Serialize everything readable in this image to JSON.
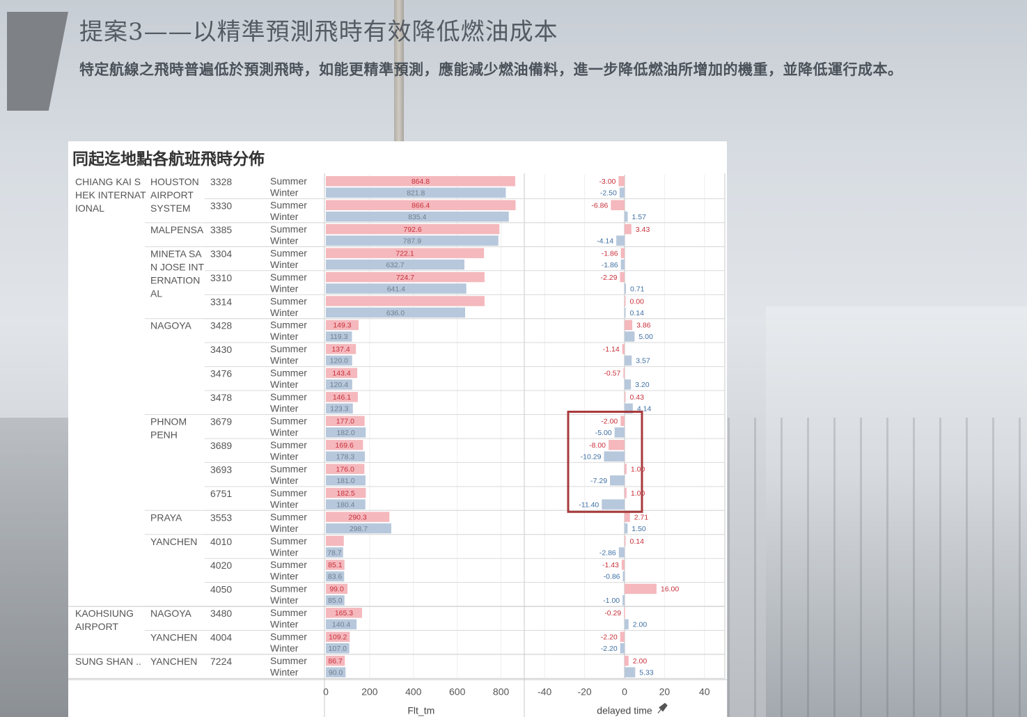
{
  "page": {
    "title": "提案3——以精準預測飛時有效降低燃油成本",
    "subtitle": "特定航線之飛時普遍低於預測飛時，如能更精準預測，應能減少燃油備料，進一步降低燃油所增加的機重，並降低運行成本。"
  },
  "chart_data": {
    "title": "同起迄地點各航班飛時分佈",
    "type": "bar",
    "orientation": "horizontal",
    "series": [
      {
        "name": "Summer",
        "color": "#f4b8bd",
        "label_color": "#c8303a"
      },
      {
        "name": "Winter",
        "color": "#b7c8dc",
        "label_color": "#3f6fa3"
      }
    ],
    "origins": [
      {
        "label": "CHIANG KAI S HEK INTERNAT IONAL",
        "label_lines": [
          "CHIANG KAI S",
          "HEK INTERNAT",
          "IONAL"
        ],
        "first_flight": 0,
        "count": 18
      },
      {
        "label": "KAOHSIUNG AIRPORT",
        "label_lines": [
          "KAOHSIUNG",
          "AIRPORT"
        ],
        "first_flight": 18,
        "count": 2
      },
      {
        "label": "SUNG SHAN ..",
        "label_lines": [
          "SUNG SHAN .."
        ],
        "first_flight": 20,
        "count": 1
      }
    ],
    "destinations": [
      {
        "label": "HOUSTON AIRPORT SYSTEM",
        "label_lines": [
          "HOUSTON",
          "AIRPORT",
          "SYSTEM"
        ],
        "first_flight": 0,
        "count": 2
      },
      {
        "label": "MALPENSA",
        "label_lines": [
          "MALPENSA"
        ],
        "first_flight": 2,
        "count": 1
      },
      {
        "label": "MINETA SA N JOSE INT ERNATION AL",
        "label_lines": [
          "MINETA SA",
          "N JOSE INT",
          "ERNATION",
          "AL"
        ],
        "first_flight": 3,
        "count": 3
      },
      {
        "label": "NAGOYA",
        "label_lines": [
          "NAGOYA"
        ],
        "first_flight": 6,
        "count": 4
      },
      {
        "label": "PHNOM PENH",
        "label_lines": [
          "PHNOM",
          "PENH"
        ],
        "first_flight": 10,
        "count": 4
      },
      {
        "label": "PRAYA",
        "label_lines": [
          "PRAYA"
        ],
        "first_flight": 14,
        "count": 1
      },
      {
        "label": "YANCHEN",
        "label_lines": [
          "YANCHEN"
        ],
        "first_flight": 15,
        "count": 3
      },
      {
        "label": "NAGOYA",
        "label_lines": [
          "NAGOYA"
        ],
        "first_flight": 18,
        "count": 1
      },
      {
        "label": "YANCHEN",
        "label_lines": [
          "YANCHEN"
        ],
        "first_flight": 19,
        "count": 1
      },
      {
        "label": "YANCHEN",
        "label_lines": [
          "YANCHEN"
        ],
        "first_flight": 20,
        "count": 1
      }
    ],
    "flights": [
      {
        "flight": "3328",
        "flt_tm": [
          864.8,
          821.8
        ],
        "flt_tm_labels": [
          "864.8",
          "821.8"
        ],
        "delay": [
          -3.0,
          -2.5
        ],
        "delay_labels": [
          "-3.00",
          "-2.50"
        ]
      },
      {
        "flight": "3330",
        "flt_tm": [
          866.4,
          835.4
        ],
        "flt_tm_labels": [
          "866.4",
          "835.4"
        ],
        "delay": [
          -6.86,
          1.57
        ],
        "delay_labels": [
          "-6.86",
          "1.57"
        ]
      },
      {
        "flight": "3385",
        "flt_tm": [
          792.6,
          787.9
        ],
        "flt_tm_labels": [
          "792.6",
          "787.9"
        ],
        "delay": [
          3.43,
          -4.14
        ],
        "delay_labels": [
          "3.43",
          "-4.14"
        ]
      },
      {
        "flight": "3304",
        "flt_tm": [
          722.1,
          632.7
        ],
        "flt_tm_labels": [
          "722.1",
          "632.7"
        ],
        "delay": [
          -1.86,
          -1.86
        ],
        "delay_labels": [
          "-1.86",
          "-1.86"
        ]
      },
      {
        "flight": "3310",
        "flt_tm": [
          724.7,
          641.4
        ],
        "flt_tm_labels": [
          "724.7",
          "641.4"
        ],
        "delay": [
          -2.29,
          0.71
        ],
        "delay_labels": [
          "-2.29",
          "0.71"
        ]
      },
      {
        "flight": "3314",
        "flt_tm": [
          724.7,
          636.0
        ],
        "flt_tm_labels": [
          "",
          "636.0"
        ],
        "delay": [
          0.0,
          0.14
        ],
        "delay_labels": [
          "0.00",
          "0.14"
        ]
      },
      {
        "flight": "3428",
        "flt_tm": [
          149.3,
          119.3
        ],
        "flt_tm_labels": [
          "149.3",
          "119.3"
        ],
        "delay": [
          3.86,
          5.0
        ],
        "delay_labels": [
          "3.86",
          "5.00"
        ]
      },
      {
        "flight": "3430",
        "flt_tm": [
          137.4,
          120.0
        ],
        "flt_tm_labels": [
          "137.4",
          "120.0"
        ],
        "delay": [
          -1.14,
          3.57
        ],
        "delay_labels": [
          "-1.14",
          "3.57"
        ]
      },
      {
        "flight": "3476",
        "flt_tm": [
          143.4,
          120.4
        ],
        "flt_tm_labels": [
          "143.4",
          "120.4"
        ],
        "delay": [
          -0.57,
          3.2
        ],
        "delay_labels": [
          "-0.57",
          "3.20"
        ]
      },
      {
        "flight": "3478",
        "flt_tm": [
          146.1,
          123.3
        ],
        "flt_tm_labels": [
          "146.1",
          "123.3"
        ],
        "delay": [
          0.43,
          4.14
        ],
        "delay_labels": [
          "0.43",
          "4.14"
        ]
      },
      {
        "flight": "3679",
        "flt_tm": [
          177.0,
          182.0
        ],
        "flt_tm_labels": [
          "177.0",
          "182.0"
        ],
        "delay": [
          -2.0,
          -5.0
        ],
        "delay_labels": [
          "-2.00",
          "-5.00"
        ]
      },
      {
        "flight": "3689",
        "flt_tm": [
          169.6,
          178.3
        ],
        "flt_tm_labels": [
          "169.6",
          "178.3"
        ],
        "delay": [
          -8.0,
          -10.29
        ],
        "delay_labels": [
          "-8.00",
          "-10.29"
        ]
      },
      {
        "flight": "3693",
        "flt_tm": [
          176.0,
          181.0
        ],
        "flt_tm_labels": [
          "176.0",
          "181.0"
        ],
        "delay": [
          1.0,
          -7.29
        ],
        "delay_labels": [
          "1.00",
          "-7.29"
        ]
      },
      {
        "flight": "6751",
        "flt_tm": [
          182.5,
          180.4
        ],
        "flt_tm_labels": [
          "182.5",
          "180.4"
        ],
        "delay": [
          1.0,
          -11.4
        ],
        "delay_labels": [
          "1.00",
          "-11.40"
        ]
      },
      {
        "flight": "3553",
        "flt_tm": [
          290.3,
          298.7
        ],
        "flt_tm_labels": [
          "290.3",
          "298.7"
        ],
        "delay": [
          2.71,
          1.5
        ],
        "delay_labels": [
          "2.71",
          "1.50"
        ]
      },
      {
        "flight": "4010",
        "flt_tm": [
          82.0,
          78.7
        ],
        "flt_tm_labels": [
          "",
          "78.7"
        ],
        "delay": [
          0.14,
          -2.86
        ],
        "delay_labels": [
          "0.14",
          "-2.86"
        ]
      },
      {
        "flight": "4020",
        "flt_tm": [
          85.1,
          83.6
        ],
        "flt_tm_labels": [
          "85.1",
          "83.6"
        ],
        "delay": [
          -1.43,
          -0.86
        ],
        "delay_labels": [
          "-1.43",
          "-0.86"
        ]
      },
      {
        "flight": "4050",
        "flt_tm": [
          99.0,
          85.0
        ],
        "flt_tm_labels": [
          "99.0",
          "85.0"
        ],
        "delay": [
          16.0,
          -1.0
        ],
        "delay_labels": [
          "16.00",
          "-1.00"
        ]
      },
      {
        "flight": "3480",
        "flt_tm": [
          165.3,
          140.4
        ],
        "flt_tm_labels": [
          "165.3",
          "140.4"
        ],
        "delay": [
          -0.29,
          2.0
        ],
        "delay_labels": [
          "-0.29",
          "2.00"
        ]
      },
      {
        "flight": "4004",
        "flt_tm": [
          109.2,
          107.0
        ],
        "flt_tm_labels": [
          "109.2",
          "107.0"
        ],
        "delay": [
          -2.2,
          -2.2
        ],
        "delay_labels": [
          "-2.20",
          "-2.20"
        ]
      },
      {
        "flight": "7224",
        "flt_tm": [
          86.7,
          90.0
        ],
        "flt_tm_labels": [
          "86.7",
          "90.0"
        ],
        "delay": [
          2.0,
          5.33
        ],
        "delay_labels": [
          "2.00",
          "5.33"
        ]
      }
    ],
    "axes": {
      "flt_tm": {
        "label": "Flt_tm",
        "range": [
          0,
          900
        ],
        "ticks": [
          0,
          200,
          400,
          600,
          800
        ]
      },
      "delay": {
        "label": "delayed time",
        "range": [
          -50,
          50
        ],
        "ticks": [
          -40,
          -20,
          0,
          20,
          40
        ]
      }
    },
    "highlight": {
      "from_flight": 10,
      "to_flight": 13,
      "color": "#a83a3c"
    },
    "grid": true
  }
}
